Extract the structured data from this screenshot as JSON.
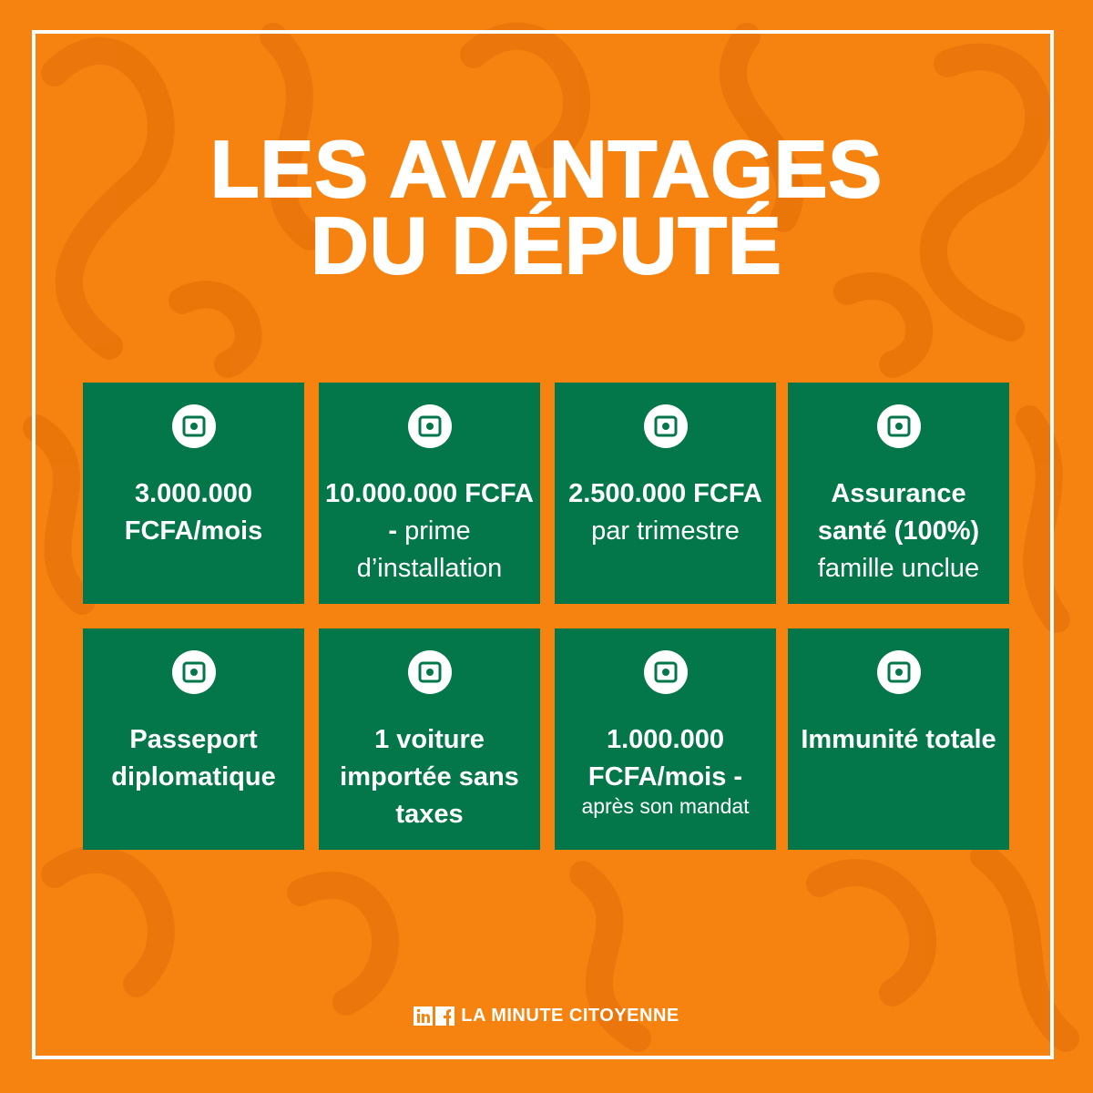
{
  "title": {
    "line1": "LES AVANTAGES",
    "line2": "DU DÉPUTÉ"
  },
  "cards": [
    {
      "bold": "3.000.000 FCFA/mois"
    },
    {
      "bold": "10.000.000 FCFA -",
      "light": "prime d’installation"
    },
    {
      "bold": "2.500.000 FCFA",
      "light": "par trimestre"
    },
    {
      "bold": "Assurance santé (100%)",
      "light": "famille unclue"
    },
    {
      "bold": "Passeport diplomatique"
    },
    {
      "bold": "1 voiture importée sans taxes"
    },
    {
      "bold": "1.000.000 FCFA/mois -",
      "light": "après son mandat"
    },
    {
      "bold": "Immunité totale"
    }
  ],
  "footer": {
    "brand": "LA MINUTE CITOYENNE"
  }
}
